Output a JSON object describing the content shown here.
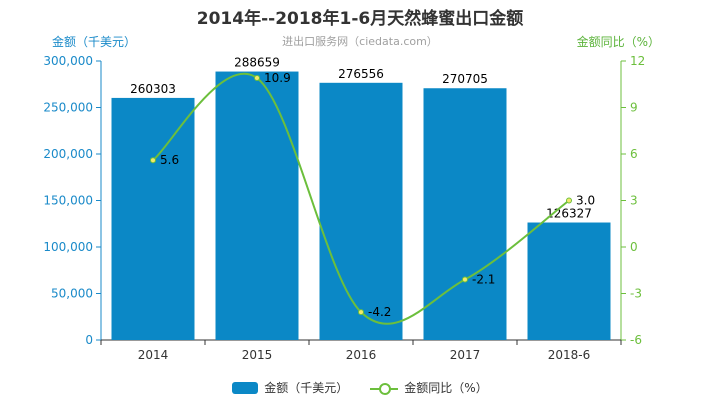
{
  "chart_data": {
    "type": "bar",
    "title": "2014年--2018年1-6月天然蜂蜜出口金额",
    "subtitle": "进出口服务网（ciedata.com）",
    "categories": [
      "2014",
      "2015",
      "2016",
      "2017",
      "2018-6"
    ],
    "series": [
      {
        "name": "金额（千美元）",
        "type": "bar",
        "axis": "left",
        "color": "#0b88c6",
        "values": [
          260303,
          288659,
          276556,
          270705,
          126327
        ]
      },
      {
        "name": "金额同比（%）",
        "type": "line",
        "axis": "right",
        "color": "#6cbf3c",
        "values": [
          5.6,
          10.9,
          -4.2,
          -2.1,
          3.0
        ]
      }
    ],
    "ylabel": "金额（千美元）",
    "ylabel_right": "金额同比（%）",
    "ylim": [
      0,
      300000
    ],
    "ylim_right": [
      -6,
      12
    ],
    "yticks": [
      "0",
      "50,000",
      "100,000",
      "150,000",
      "200,000",
      "250,000",
      "300,000"
    ],
    "yticks_right": [
      "-6",
      "-3",
      "0",
      "3",
      "6",
      "9",
      "12"
    ],
    "bar_labels": [
      "260303",
      "288659",
      "276556",
      "270705",
      "126327"
    ],
    "line_labels": [
      "5.6",
      "10.9",
      "-4.2",
      "-2.1",
      "3.0"
    ],
    "grid": false,
    "legend": "bottom"
  }
}
